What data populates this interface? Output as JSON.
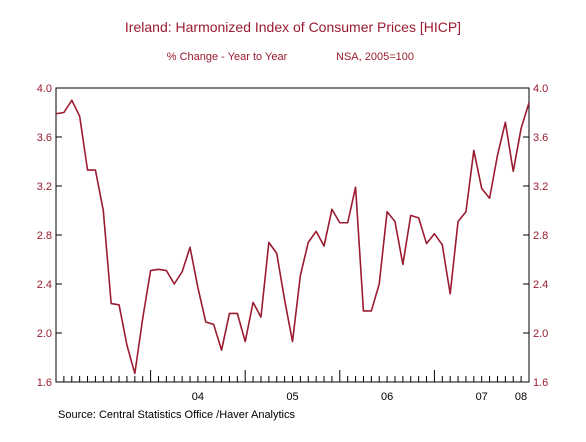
{
  "chart_data": {
    "type": "line",
    "title": "Ireland: Harmonized Index of Consumer Prices [HICP]",
    "subtitle_left": "% Change - Year to Year",
    "subtitle_right": "NSA, 2005=100",
    "source": "Source:  Central Statistics Office /Haver Analytics",
    "xlabel": "",
    "ylabel": "",
    "ylim": [
      1.6,
      4.0
    ],
    "yticks": [
      1.6,
      2.0,
      2.4,
      2.8,
      3.2,
      3.6,
      4.0
    ],
    "ytick_labels": [
      "1.6",
      "2.0",
      "2.4",
      "2.8",
      "3.2",
      "3.6",
      "4.0"
    ],
    "x_start": "2003-01",
    "x_end": "2008-01",
    "xtick_labels": [
      "04",
      "05",
      "06",
      "07",
      "08"
    ],
    "grid": false,
    "line_color": "#9b1b30",
    "series": [
      {
        "values": [
          3.79,
          3.8,
          3.9,
          3.77,
          3.33,
          3.33,
          3.0,
          2.24,
          2.23,
          1.9,
          1.67,
          2.12,
          2.51,
          2.52,
          2.51,
          2.4,
          2.5,
          2.7,
          2.37,
          2.09,
          2.07,
          1.86,
          2.16,
          2.16,
          1.93,
          2.25,
          2.13,
          2.74,
          2.65,
          2.27,
          1.93,
          2.47,
          2.74,
          2.83,
          2.71,
          3.01,
          2.9,
          2.9,
          3.19,
          2.18,
          2.18,
          2.4,
          2.99,
          2.91,
          2.56,
          2.96,
          2.94,
          2.73,
          2.81,
          2.72,
          2.32,
          2.91,
          2.99,
          3.49,
          3.18,
          3.1,
          3.45,
          3.72,
          3.32,
          3.67,
          3.88
        ]
      }
    ]
  }
}
